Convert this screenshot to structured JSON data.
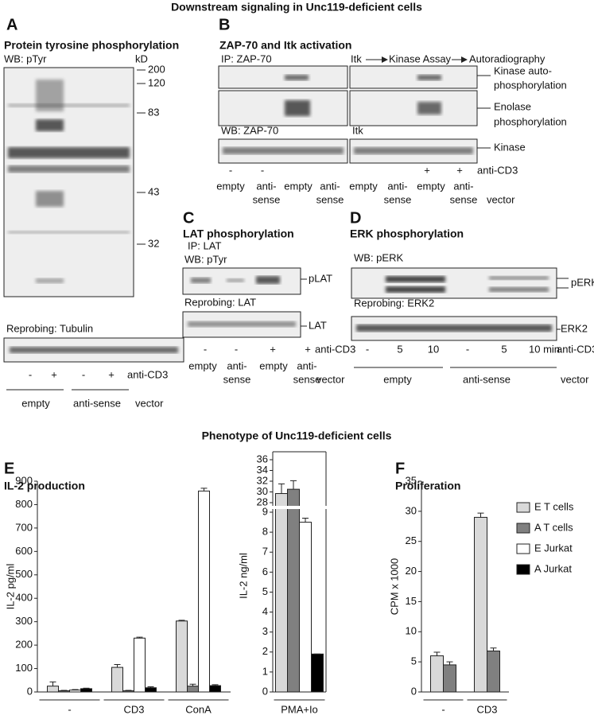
{
  "title": "Downstream signaling in Unc119-deficient cells",
  "panel_a": {
    "letter": "A",
    "title": "Protein tyrosine phosphorylation",
    "blot": "WB: pTyr",
    "unit": "kD",
    "markers": [
      "200",
      "120",
      "83",
      "43",
      "32"
    ],
    "reprobe": "Reprobing: Tubulin",
    "lanes": [
      "-",
      "+",
      "-",
      "+"
    ],
    "treatment": "anti-CD3",
    "groups": [
      "empty",
      "anti-sense"
    ],
    "vector": "vector"
  },
  "panel_b": {
    "letter": "B",
    "title": "ZAP-70 and Itk activation",
    "ip": "IP: ZAP-70",
    "itk": "Itk",
    "assay": "Kinase Assay",
    "autorad": "Autoradiography",
    "band1": [
      "Kinase auto-",
      "phosphorylation"
    ],
    "band2": [
      "Enolase",
      "phosphorylation"
    ],
    "wb": "WB: ZAP-70",
    "wb_itk": "Itk",
    "band3": "Kinase",
    "lanes": [
      "-",
      "-",
      "+",
      "+"
    ],
    "treatment": "anti-CD3",
    "groups": [
      [
        "empty"
      ],
      [
        "anti-",
        "sense"
      ],
      [
        "empty"
      ],
      [
        "anti-",
        "sense"
      ],
      [
        "empty"
      ],
      [
        "anti-",
        "sense"
      ],
      [
        "empty"
      ],
      [
        "anti-",
        "sense"
      ]
    ],
    "vector": "vector"
  },
  "panel_c": {
    "letter": "C",
    "title": "LAT phosphorylation",
    "ip": "IP: LAT",
    "wb": "WB: pTyr",
    "band1": "pLAT",
    "reprobe": "Reprobing: LAT",
    "band2": "LAT",
    "lanes": [
      "-",
      "-",
      "+",
      "+"
    ],
    "treatment": "anti-CD3",
    "groups": [
      [
        "empty"
      ],
      [
        "anti-",
        "sense"
      ],
      [
        "empty"
      ],
      [
        "anti-",
        "sense"
      ]
    ],
    "vector": "vector"
  },
  "panel_d": {
    "letter": "D",
    "title": "ERK phosphorylation",
    "wb": "WB: pERK",
    "band1": "pERK",
    "reprobe": "Reprobing: ERK2",
    "band2": "ERK2",
    "lanes": [
      "-",
      "5",
      "10",
      "-",
      "5",
      "10 min"
    ],
    "treatment": "anti-CD3",
    "groups": [
      "empty",
      "anti-sense"
    ],
    "vector": "vector"
  },
  "phenotype_title": "Phenotype of Unc119-deficient cells",
  "panel_e": {
    "letter": "E",
    "title": "IL-2 production"
  },
  "panel_f": {
    "letter": "F",
    "title": "Proliferation"
  },
  "chart_data": [
    {
      "type": "bar",
      "ylabel": "IL-2 pg/ml",
      "categories": [
        "-",
        "CD3",
        "ConA"
      ],
      "ylim": [
        0,
        900
      ],
      "yticks": [
        0,
        100,
        200,
        300,
        400,
        500,
        600,
        700,
        800,
        900
      ],
      "legend": true,
      "series": [
        {
          "name": "E T cells",
          "color": "#d9d9d9",
          "values": [
            25,
            105,
            303
          ],
          "errors": [
            18,
            12,
            3
          ]
        },
        {
          "name": "A T cells",
          "color": "#808080",
          "values": [
            5,
            5,
            25
          ],
          "errors": [
            2,
            2,
            8
          ]
        },
        {
          "name": "E Jurkat",
          "color": "#ffffff",
          "values": [
            8,
            230,
            858
          ],
          "errors": [
            2,
            4,
            12
          ]
        },
        {
          "name": "A Jurkat",
          "color": "#000000",
          "values": [
            14,
            18,
            27
          ],
          "errors": [
            2,
            4,
            4
          ]
        }
      ]
    },
    {
      "type": "bar",
      "ylabel": "IL-2 ng/ml",
      "categories": [
        "PMA+Io"
      ],
      "ylim": [
        0,
        36
      ],
      "axis_break": [
        9,
        28
      ],
      "yticks": [
        0,
        1,
        2,
        3,
        4,
        5,
        6,
        7,
        8,
        9,
        28,
        30,
        32,
        34,
        36
      ],
      "series": [
        {
          "color": "#d9d9d9",
          "values": [
            29.7
          ],
          "errors": [
            1.8
          ]
        },
        {
          "color": "#808080",
          "values": [
            30.5
          ],
          "errors": [
            1.6
          ]
        },
        {
          "color": "#ffffff",
          "values": [
            8.5
          ],
          "errors": [
            0.2
          ]
        },
        {
          "color": "#000000",
          "values": [
            1.9
          ],
          "errors": [
            0
          ]
        }
      ]
    },
    {
      "type": "bar",
      "ylabel": "CPM x 1000",
      "categories": [
        "-",
        "CD3"
      ],
      "ylim": [
        0,
        35
      ],
      "yticks": [
        0,
        5,
        10,
        15,
        20,
        25,
        30,
        35
      ],
      "series": [
        {
          "color": "#d9d9d9",
          "values": [
            6,
            29
          ],
          "errors": [
            0.6,
            0.7
          ]
        },
        {
          "color": "#808080",
          "values": [
            4.5,
            6.8
          ],
          "errors": [
            0.5,
            0.5
          ]
        }
      ]
    }
  ]
}
